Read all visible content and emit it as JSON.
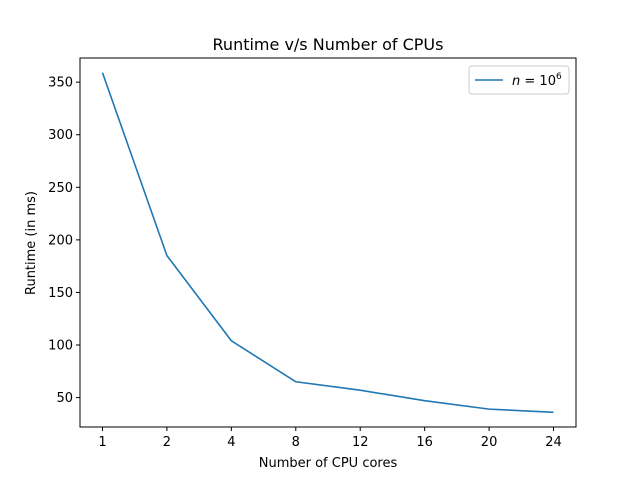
{
  "chart_data": {
    "type": "line",
    "title": "Runtime v/s Number of CPUs",
    "xlabel": "Number of CPU cores",
    "ylabel": "Runtime (in ms)",
    "categories": [
      "1",
      "2",
      "4",
      "8",
      "12",
      "16",
      "20",
      "24"
    ],
    "series": [
      {
        "name": "n = 10^6",
        "legend": {
          "var": "n",
          "eq": " = ",
          "base": "10",
          "exp": "6"
        },
        "color": "#1f77b4",
        "values": [
          359,
          185,
          104,
          65,
          57,
          47,
          39,
          36
        ]
      }
    ],
    "yticks": [
      50,
      100,
      150,
      200,
      250,
      300,
      350
    ],
    "ylim": [
      22,
      373
    ],
    "grid": false,
    "legend_position": "top-right"
  }
}
